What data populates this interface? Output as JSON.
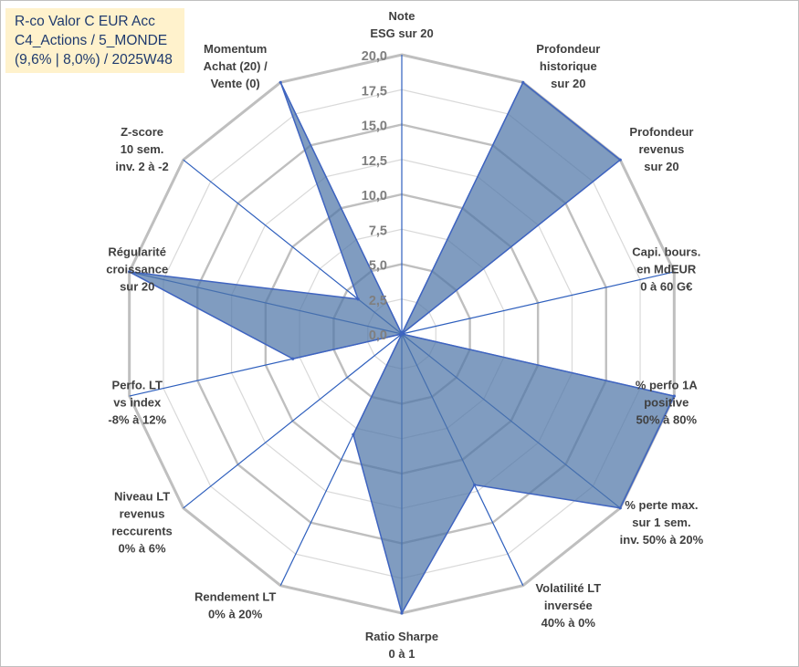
{
  "title_box": {
    "line1": "R-co Valor C EUR Acc",
    "line2": "C4_Actions / 5_MONDE",
    "line3": "(9,6% | 8,0%) / 2025W48"
  },
  "chart_data": {
    "type": "radar",
    "title": "R-co Valor C EUR Acc",
    "rmax": 20,
    "gridlines": [
      2.5,
      5,
      7.5,
      10,
      12.5,
      15,
      17.5,
      20
    ],
    "tick_labels": [
      "0,0",
      "2,5",
      "5,0",
      "7,5",
      "10,0",
      "12,5",
      "15,0",
      "17,5",
      "20,0"
    ],
    "categories": [
      [
        "Note",
        "ESG sur 20"
      ],
      [
        "Profondeur",
        "historique",
        "sur 20"
      ],
      [
        "Profondeur",
        "revenus",
        "sur 20"
      ],
      [
        "Capi. bours.",
        "en MdEUR",
        "0 à 60 G€"
      ],
      [
        "% perfo 1A",
        "positive",
        "50% à 80%"
      ],
      [
        "% perte max.",
        "sur 1 sem.",
        "inv. 50% à 20%"
      ],
      [
        "Volatilité LT",
        "inversée",
        "40% à 0%"
      ],
      [
        "Ratio Sharpe",
        "0 à 1"
      ],
      [
        "Rendement LT",
        "0% à 20%"
      ],
      [
        "Niveau LT",
        "revenus",
        "reccurents",
        "0% à 6%"
      ],
      [
        "Perfo. LT",
        "vs index",
        "-8% à 12%"
      ],
      [
        "Régularité",
        "croissance",
        "sur 20"
      ],
      [
        "Z-score",
        "10 sem.",
        "inv. 2 à -2"
      ],
      [
        "Momentum",
        "Achat (20) /",
        "Vente (0)"
      ]
    ],
    "series": [
      {
        "name": "R-co Valor C EUR Acc",
        "values": [
          0,
          20,
          20,
          0,
          20,
          20,
          12,
          20,
          8,
          0,
          8,
          20,
          4,
          20
        ],
        "color": "#4f76a7"
      }
    ],
    "colors": {
      "fill": "#4f76a7",
      "stroke": "#3f64c0",
      "spoke": "#2e5fbd",
      "grid_outer": "#bfbfbf",
      "grid_inner": "#d9d9d9",
      "title_bg": "#fff2cc"
    }
  }
}
